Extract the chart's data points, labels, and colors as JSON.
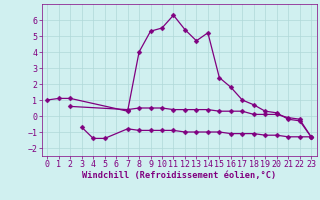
{
  "line1_x": [
    0,
    1,
    2,
    7,
    8,
    9,
    10,
    11,
    12,
    13,
    14,
    15,
    16,
    17,
    18,
    19,
    20,
    21,
    22,
    23
  ],
  "line1_y": [
    1.0,
    1.1,
    1.1,
    0.3,
    4.0,
    5.3,
    5.5,
    6.3,
    5.4,
    4.7,
    5.2,
    2.4,
    1.8,
    1.0,
    0.7,
    0.3,
    0.2,
    -0.2,
    -0.3,
    -1.3
  ],
  "line2_x": [
    2,
    7,
    8,
    9,
    10,
    11,
    12,
    13,
    14,
    15,
    16,
    17,
    18,
    19,
    20,
    21,
    22,
    23
  ],
  "line2_y": [
    0.6,
    0.4,
    0.5,
    0.5,
    0.5,
    0.4,
    0.4,
    0.4,
    0.4,
    0.3,
    0.3,
    0.3,
    0.1,
    0.1,
    0.1,
    -0.1,
    -0.2,
    -1.3
  ],
  "line3_x": [
    3,
    4,
    5,
    7,
    8,
    9,
    10,
    11,
    12,
    13,
    14,
    15,
    16,
    17,
    18,
    19,
    20,
    21,
    22,
    23
  ],
  "line3_y": [
    -0.7,
    -1.4,
    -1.4,
    -0.8,
    -0.9,
    -0.9,
    -0.9,
    -0.9,
    -1.0,
    -1.0,
    -1.0,
    -1.0,
    -1.1,
    -1.1,
    -1.1,
    -1.2,
    -1.2,
    -1.3,
    -1.3,
    -1.3
  ],
  "xlabel": "Windchill (Refroidissement éolien,°C)",
  "ylim": [
    -2.5,
    7.0
  ],
  "xlim": [
    -0.5,
    23.5
  ],
  "yticks": [
    -2,
    -1,
    0,
    1,
    2,
    3,
    4,
    5,
    6
  ],
  "xticks": [
    0,
    1,
    2,
    3,
    4,
    5,
    6,
    7,
    8,
    9,
    10,
    11,
    12,
    13,
    14,
    15,
    16,
    17,
    18,
    19,
    20,
    21,
    22,
    23
  ],
  "line_color": "#800080",
  "bg_color": "#d0f0f0",
  "grid_color": "#b0d8d8",
  "markersize": 2.5,
  "linewidth": 0.9,
  "tick_fontsize": 6.0,
  "xlabel_fontsize": 6.2,
  "font_color": "#800080"
}
